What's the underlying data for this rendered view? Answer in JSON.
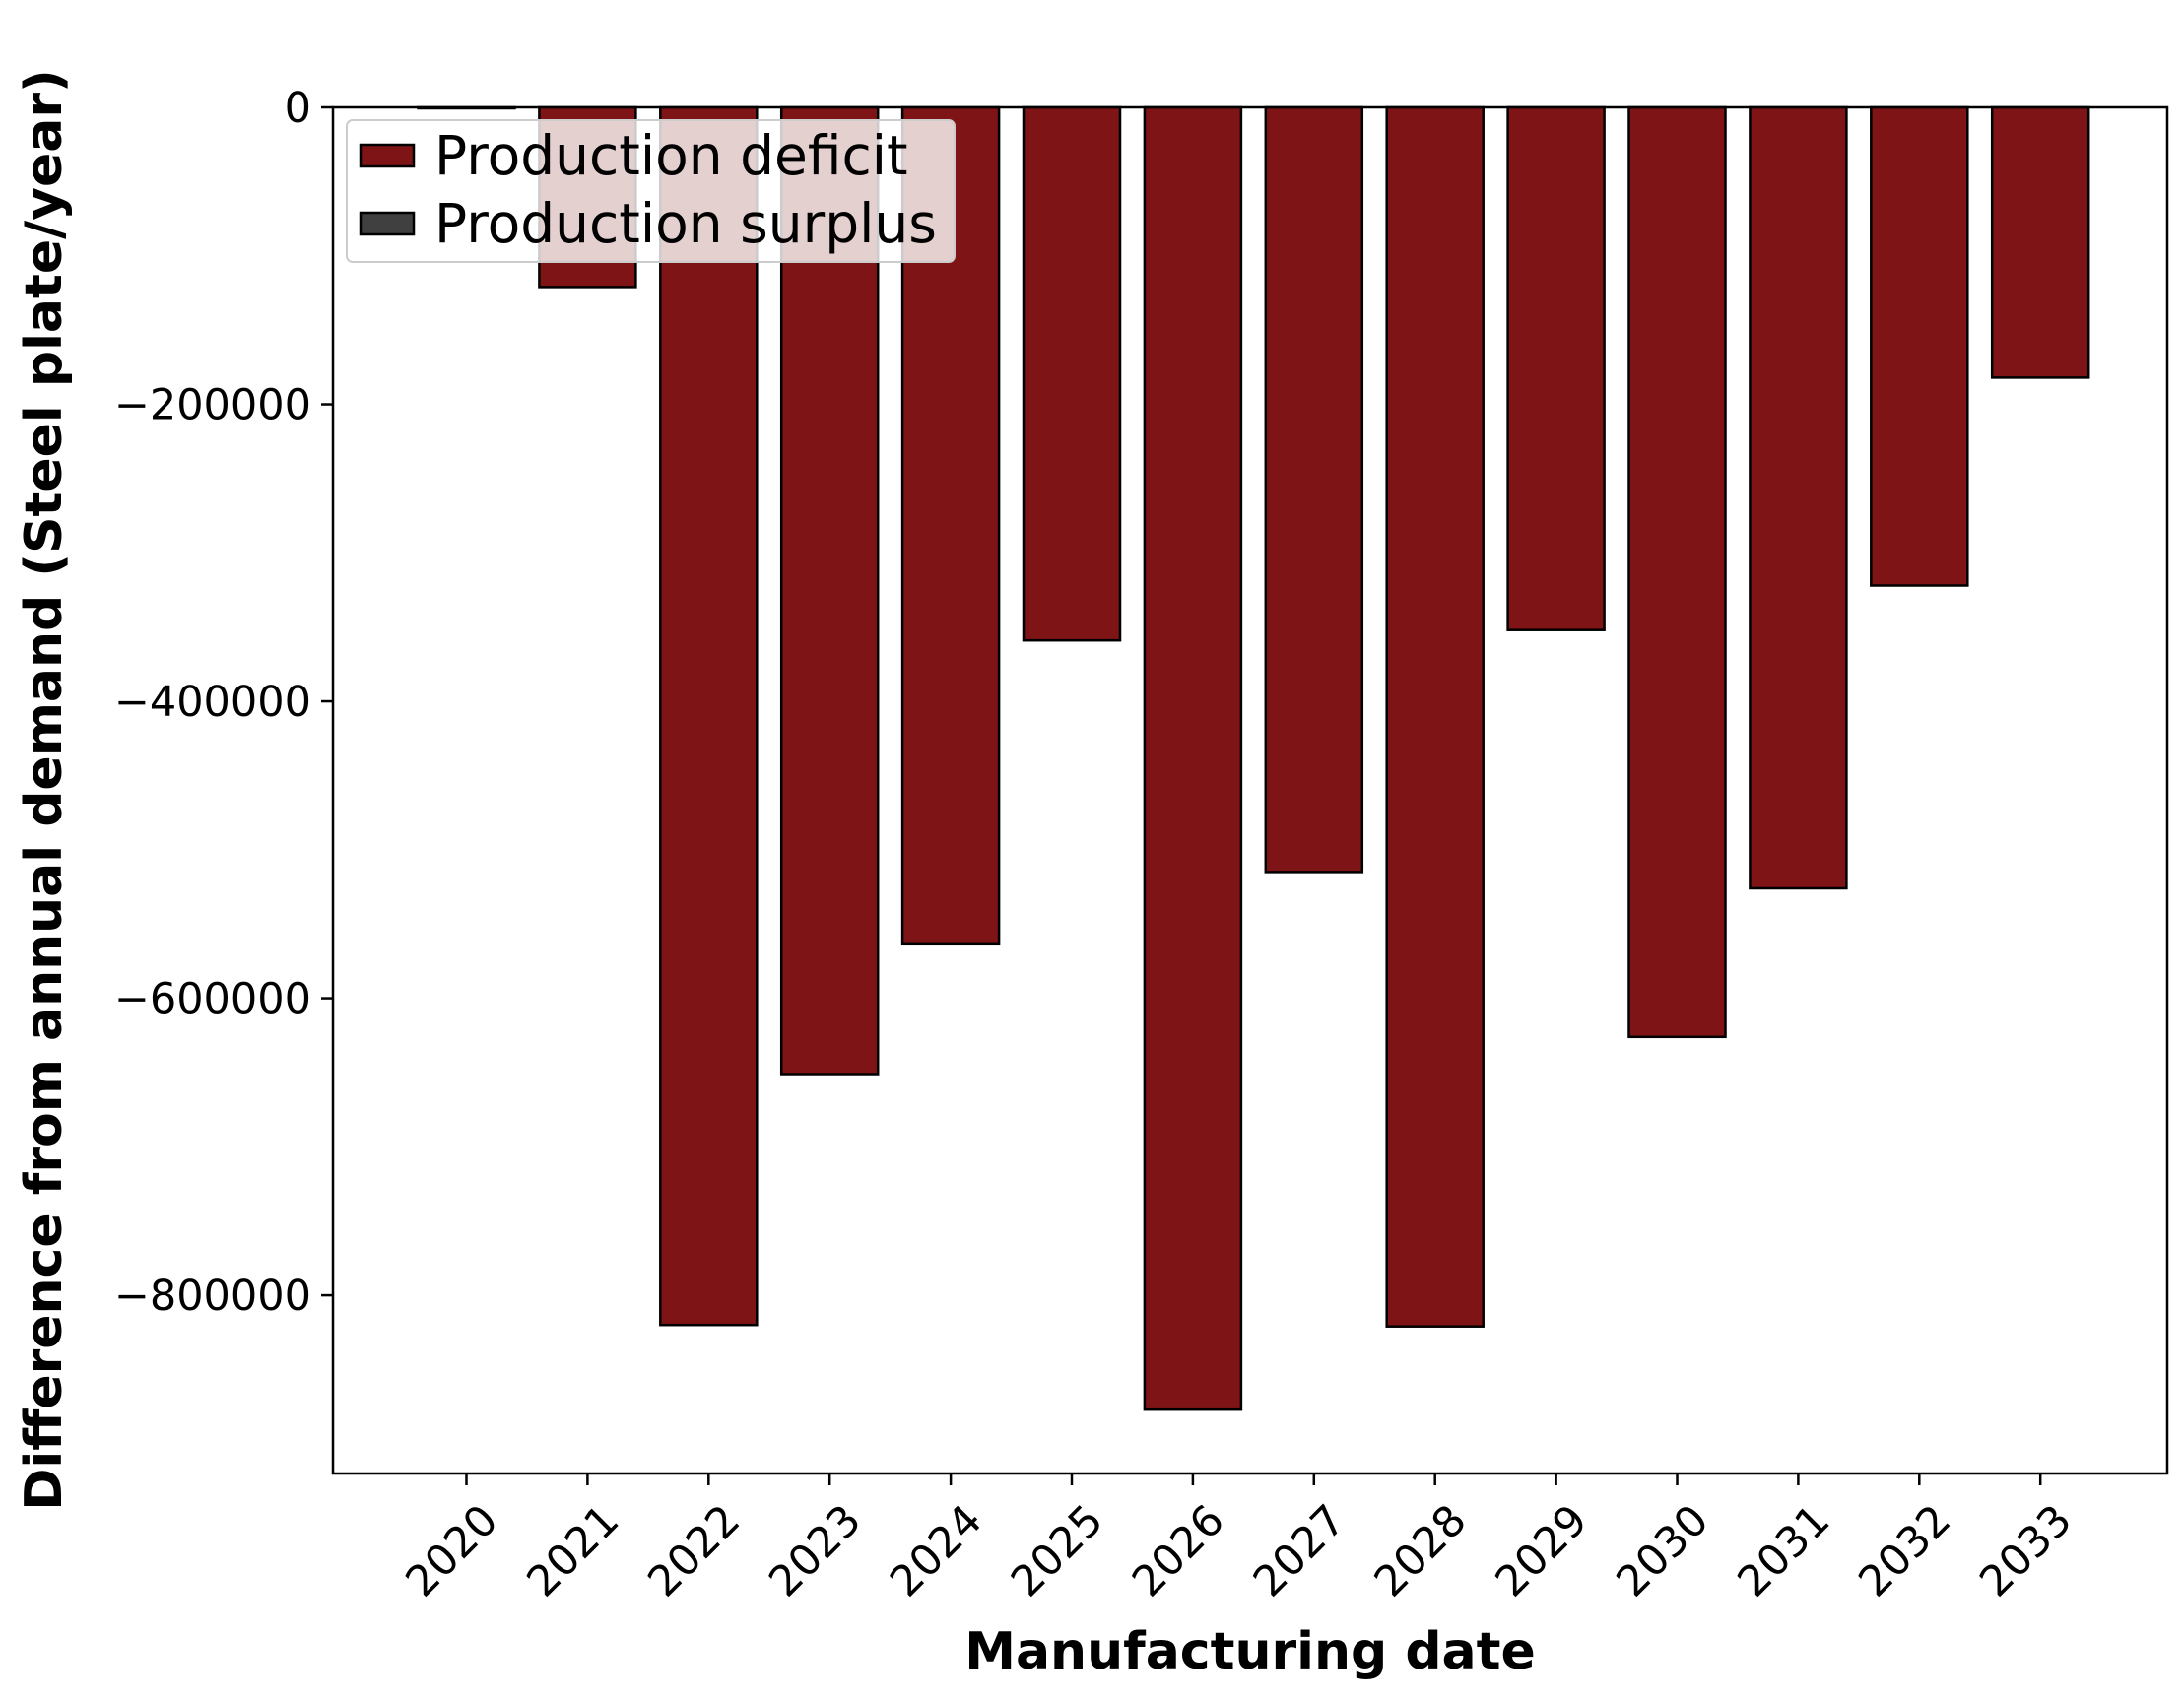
{
  "chart_data": {
    "type": "bar",
    "title": "",
    "xlabel": "Manufacturing date",
    "ylabel": "Difference from annual demand (Steel plate/year)",
    "categories": [
      "2020",
      "2021",
      "2022",
      "2023",
      "2024",
      "2025",
      "2026",
      "2027",
      "2028",
      "2029",
      "2030",
      "2031",
      "2032",
      "2033"
    ],
    "series": [
      {
        "name": "Production deficit",
        "color": "#7f1416",
        "values": [
          0,
          -121000,
          -820000,
          -651000,
          -563000,
          -359000,
          -877000,
          -515000,
          -821000,
          -352000,
          -626000,
          -526000,
          -322000,
          -182000
        ]
      },
      {
        "name": "Production surplus",
        "color": "#404040",
        "values": [
          0,
          0,
          0,
          0,
          0,
          0,
          0,
          0,
          0,
          0,
          0,
          0,
          0,
          0
        ]
      }
    ],
    "ylim": [
      -920000,
      0
    ],
    "yticks": [
      0,
      -200000,
      -400000,
      -600000,
      -800000
    ],
    "ytick_labels": [
      "0",
      "−200000",
      "−400000",
      "−600000",
      "−800000"
    ],
    "xtick_rotation": 45,
    "grid": false,
    "legend_position": "upper-left"
  }
}
